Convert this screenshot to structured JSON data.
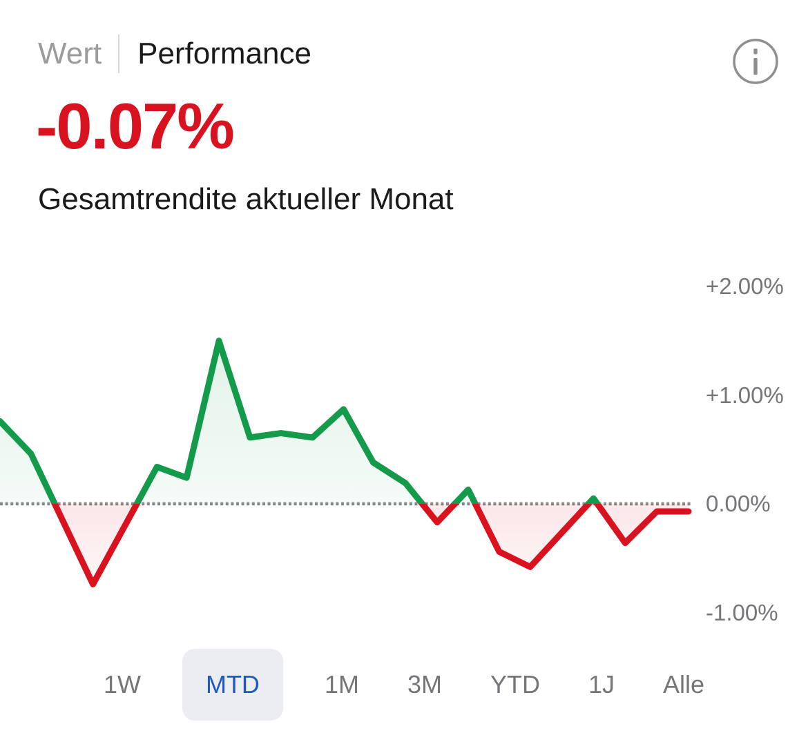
{
  "header": {
    "wert_label": "Wert",
    "performance_label": "Performance"
  },
  "summary": {
    "value": "-0.07%",
    "caption": "Gesamtrendite aktueller Monat"
  },
  "colors": {
    "negative": "#d9121f",
    "positive": "#149a4b",
    "zero_line": "#86868a",
    "tab_active_bg": "#ebedf3",
    "tab_active_text": "#1f57c8",
    "header_inactive": "#9b9b9e",
    "text_dark": "#1a1a1c",
    "text_muted": "#75757a"
  },
  "chart_data": {
    "type": "line",
    "title": "Gesamtrendite aktueller Monat",
    "xlabel": "",
    "ylabel": "",
    "unit": "%",
    "ylim": [
      -1.35,
      2.25
    ],
    "grid": false,
    "legend_position": "none",
    "zero_baseline_dotted": true,
    "style_note": "segments above 0 green with light green area fill, below 0 red with light pink area fill",
    "y_axis_labels": [
      {
        "text": "+2.00%",
        "value": 2.0
      },
      {
        "text": "+1.00%",
        "value": 1.0
      },
      {
        "text": "0.00%",
        "value": 0.0
      },
      {
        "text": "-1.00%",
        "value": -1.0
      }
    ],
    "series": [
      {
        "name": "Performance MTD",
        "points": [
          [
            0.0,
            0.76
          ],
          [
            0.045,
            0.46
          ],
          [
            0.135,
            -0.74
          ],
          [
            0.228,
            0.34
          ],
          [
            0.271,
            0.24
          ],
          [
            0.318,
            1.5
          ],
          [
            0.363,
            0.61
          ],
          [
            0.408,
            0.65
          ],
          [
            0.454,
            0.61
          ],
          [
            0.499,
            0.87
          ],
          [
            0.542,
            0.38
          ],
          [
            0.589,
            0.19
          ],
          [
            0.635,
            -0.17
          ],
          [
            0.68,
            0.13
          ],
          [
            0.725,
            -0.44
          ],
          [
            0.77,
            -0.58
          ],
          [
            0.862,
            0.05
          ],
          [
            0.908,
            -0.36
          ],
          [
            0.954,
            -0.07
          ],
          [
            1.0,
            -0.07
          ]
        ]
      }
    ]
  },
  "ranges": {
    "items": [
      {
        "label": "1W",
        "active": false
      },
      {
        "label": "MTD",
        "active": true
      },
      {
        "label": "1M",
        "active": false
      },
      {
        "label": "3M",
        "active": false
      },
      {
        "label": "YTD",
        "active": false
      },
      {
        "label": "1J",
        "active": false
      },
      {
        "label": "Alle",
        "active": false
      }
    ]
  }
}
